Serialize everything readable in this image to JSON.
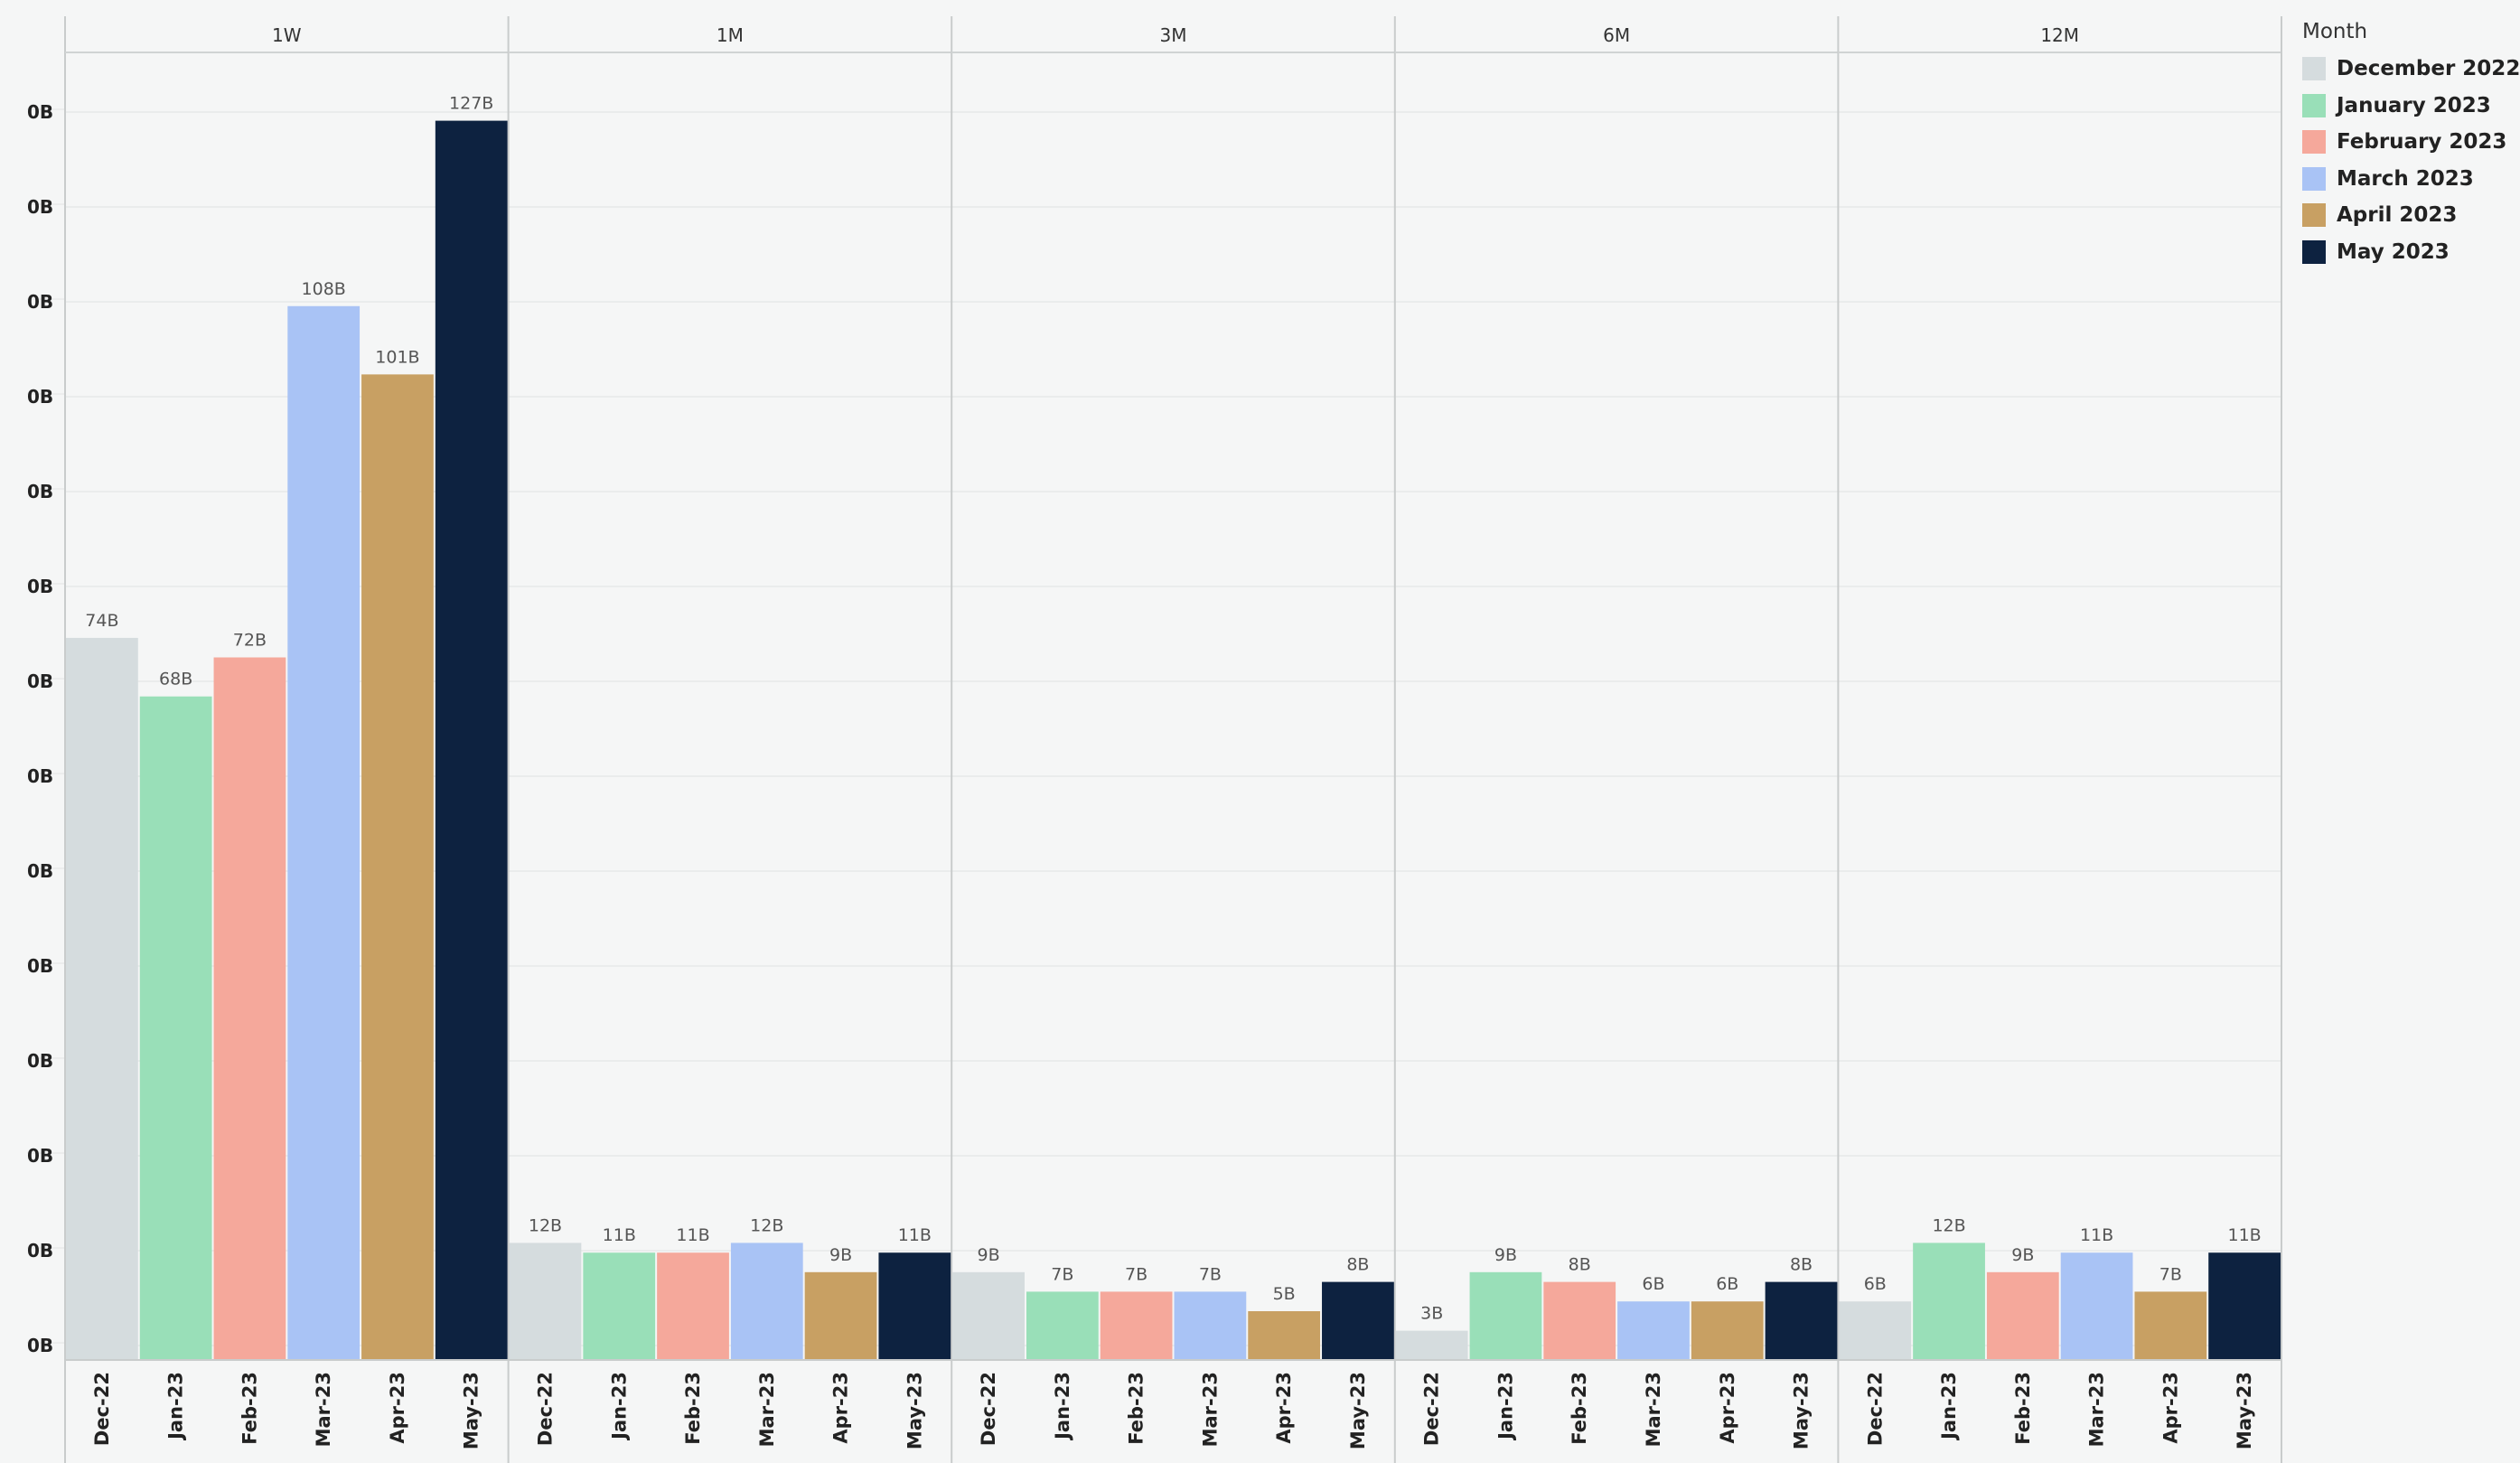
{
  "chart_data": {
    "type": "bar",
    "legend_title": "Month",
    "legend_position": "top-right",
    "grid": true,
    "ylim": [
      0,
      134
    ],
    "y_tick_labels": [
      "0B",
      "0B",
      "0B",
      "0B",
      "0B",
      "0B",
      "0B",
      "0B",
      "0B",
      "0B",
      "0B",
      "0B",
      "0B",
      "0B"
    ],
    "categories": [
      "Dec-22",
      "Jan-23",
      "Feb-23",
      "Mar-23",
      "Apr-23",
      "May-23"
    ],
    "series_legend": [
      {
        "name": "December 2022",
        "color": "#d5dcde"
      },
      {
        "name": "January 2023",
        "color": "#99dfb8"
      },
      {
        "name": "February 2023",
        "color": "#f5a89b"
      },
      {
        "name": "March 2023",
        "color": "#a9c3f5"
      },
      {
        "name": "April 2023",
        "color": "#c8a063"
      },
      {
        "name": "May 2023",
        "color": "#0d2240"
      }
    ],
    "panels": [
      {
        "title": "1W",
        "values": [
          74,
          68,
          72,
          108,
          101,
          127
        ],
        "labels": [
          "74B",
          "68B",
          "72B",
          "108B",
          "101B",
          "127B"
        ]
      },
      {
        "title": "1M",
        "values": [
          12,
          11,
          11,
          12,
          9,
          11
        ],
        "labels": [
          "12B",
          "11B",
          "11B",
          "12B",
          "9B",
          "11B"
        ]
      },
      {
        "title": "3M",
        "values": [
          9,
          7,
          7,
          7,
          5,
          8
        ],
        "labels": [
          "9B",
          "7B",
          "7B",
          "7B",
          "5B",
          "8B"
        ]
      },
      {
        "title": "6M",
        "values": [
          3,
          9,
          8,
          6,
          6,
          8
        ],
        "labels": [
          "3B",
          "9B",
          "8B",
          "6B",
          "6B",
          "8B"
        ]
      },
      {
        "title": "12M",
        "values": [
          6,
          12,
          9,
          11,
          7,
          11
        ],
        "labels": [
          "6B",
          "12B",
          "9B",
          "11B",
          "7B",
          "11B"
        ]
      }
    ]
  }
}
